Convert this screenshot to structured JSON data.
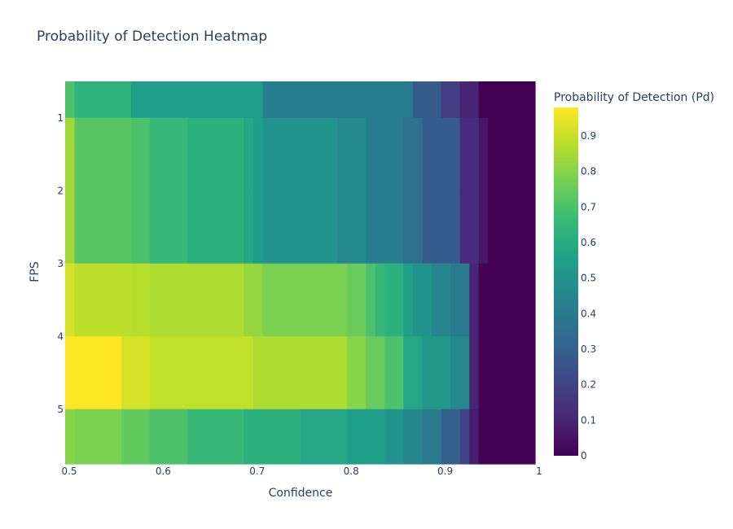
{
  "chart_data": {
    "type": "heatmap",
    "title": "Probability of Detection Heatmap",
    "xlabel": "Confidence",
    "ylabel": "FPS",
    "colorbar_title": "Probability of Detection (Pd)",
    "colorscale": "viridis",
    "zrange": [
      0,
      0.98
    ],
    "xlim": [
      0.5,
      1.0
    ],
    "x_ticks": [
      "0.5",
      "0.6",
      "0.7",
      "0.8",
      "0.9",
      "1"
    ],
    "y_ticks": [
      "1",
      "2",
      "3",
      "4",
      "5"
    ],
    "colorbar_ticks": [
      "0",
      "0.1",
      "0.2",
      "0.3",
      "0.4",
      "0.5",
      "0.6",
      "0.7",
      "0.8",
      "0.9"
    ],
    "colorbar_tick_values": [
      0,
      0.1,
      0.2,
      0.3,
      0.4,
      0.5,
      0.6,
      0.7,
      0.8,
      0.9
    ],
    "rows": [
      {
        "fps": 0.5,
        "segments": [
          {
            "x0": 0.5,
            "x1": 0.51,
            "z": 0.7
          },
          {
            "x0": 0.51,
            "x1": 0.57,
            "z": 0.63
          },
          {
            "x0": 0.57,
            "x1": 0.71,
            "z": 0.55
          },
          {
            "x0": 0.71,
            "x1": 0.86,
            "z": 0.42
          },
          {
            "x0": 0.86,
            "x1": 0.87,
            "z": 0.4
          },
          {
            "x0": 0.87,
            "x1": 0.9,
            "z": 0.28
          },
          {
            "x0": 0.9,
            "x1": 0.92,
            "z": 0.18
          },
          {
            "x0": 0.92,
            "x1": 0.94,
            "z": 0.1
          },
          {
            "x0": 0.94,
            "x1": 1.0,
            "z": 0.0
          }
        ]
      },
      {
        "fps": 1.5,
        "segments": [
          {
            "x0": 0.5,
            "x1": 0.51,
            "z": 0.84
          },
          {
            "x0": 0.51,
            "x1": 0.57,
            "z": 0.72
          },
          {
            "x0": 0.57,
            "x1": 0.59,
            "z": 0.7
          },
          {
            "x0": 0.59,
            "x1": 0.63,
            "z": 0.66
          },
          {
            "x0": 0.63,
            "x1": 0.69,
            "z": 0.62
          },
          {
            "x0": 0.69,
            "x1": 0.7,
            "z": 0.58
          },
          {
            "x0": 0.7,
            "x1": 0.71,
            "z": 0.54
          },
          {
            "x0": 0.71,
            "x1": 0.79,
            "z": 0.5
          },
          {
            "x0": 0.79,
            "x1": 0.82,
            "z": 0.46
          },
          {
            "x0": 0.82,
            "x1": 0.86,
            "z": 0.42
          },
          {
            "x0": 0.86,
            "x1": 0.88,
            "z": 0.36
          },
          {
            "x0": 0.88,
            "x1": 0.92,
            "z": 0.28
          },
          {
            "x0": 0.92,
            "x1": 0.94,
            "z": 0.12
          },
          {
            "x0": 0.94,
            "x1": 0.95,
            "z": 0.06
          },
          {
            "x0": 0.95,
            "x1": 1.0,
            "z": 0.0
          }
        ]
      },
      {
        "fps": 2.5,
        "segments": [
          {
            "x0": 0.5,
            "x1": 0.51,
            "z": 0.84
          },
          {
            "x0": 0.51,
            "x1": 0.57,
            "z": 0.72
          },
          {
            "x0": 0.57,
            "x1": 0.59,
            "z": 0.7
          },
          {
            "x0": 0.59,
            "x1": 0.63,
            "z": 0.66
          },
          {
            "x0": 0.63,
            "x1": 0.69,
            "z": 0.62
          },
          {
            "x0": 0.69,
            "x1": 0.7,
            "z": 0.58
          },
          {
            "x0": 0.7,
            "x1": 0.71,
            "z": 0.54
          },
          {
            "x0": 0.71,
            "x1": 0.79,
            "z": 0.5
          },
          {
            "x0": 0.79,
            "x1": 0.82,
            "z": 0.46
          },
          {
            "x0": 0.82,
            "x1": 0.86,
            "z": 0.42
          },
          {
            "x0": 0.86,
            "x1": 0.88,
            "z": 0.36
          },
          {
            "x0": 0.88,
            "x1": 0.92,
            "z": 0.28
          },
          {
            "x0": 0.92,
            "x1": 0.94,
            "z": 0.12
          },
          {
            "x0": 0.94,
            "x1": 0.95,
            "z": 0.06
          },
          {
            "x0": 0.95,
            "x1": 1.0,
            "z": 0.0
          }
        ]
      },
      {
        "fps": 3.5,
        "segments": [
          {
            "x0": 0.5,
            "x1": 0.51,
            "z": 0.92
          },
          {
            "x0": 0.51,
            "x1": 0.57,
            "z": 0.88
          },
          {
            "x0": 0.57,
            "x1": 0.59,
            "z": 0.87
          },
          {
            "x0": 0.59,
            "x1": 0.69,
            "z": 0.86
          },
          {
            "x0": 0.69,
            "x1": 0.71,
            "z": 0.82
          },
          {
            "x0": 0.71,
            "x1": 0.8,
            "z": 0.78
          },
          {
            "x0": 0.8,
            "x1": 0.82,
            "z": 0.75
          },
          {
            "x0": 0.82,
            "x1": 0.83,
            "z": 0.7
          },
          {
            "x0": 0.83,
            "x1": 0.84,
            "z": 0.66
          },
          {
            "x0": 0.84,
            "x1": 0.86,
            "z": 0.62
          },
          {
            "x0": 0.86,
            "x1": 0.87,
            "z": 0.55
          },
          {
            "x0": 0.87,
            "x1": 0.89,
            "z": 0.5
          },
          {
            "x0": 0.89,
            "x1": 0.91,
            "z": 0.45
          },
          {
            "x0": 0.91,
            "x1": 0.93,
            "z": 0.4
          },
          {
            "x0": 0.93,
            "x1": 0.94,
            "z": 0.1
          },
          {
            "x0": 0.94,
            "x1": 1.0,
            "z": 0.0
          }
        ]
      },
      {
        "fps": 4.5,
        "segments": [
          {
            "x0": 0.5,
            "x1": 0.56,
            "z": 0.98
          },
          {
            "x0": 0.56,
            "x1": 0.59,
            "z": 0.92
          },
          {
            "x0": 0.59,
            "x1": 0.7,
            "z": 0.89
          },
          {
            "x0": 0.7,
            "x1": 0.8,
            "z": 0.86
          },
          {
            "x0": 0.8,
            "x1": 0.82,
            "z": 0.8
          },
          {
            "x0": 0.82,
            "x1": 0.84,
            "z": 0.75
          },
          {
            "x0": 0.84,
            "x1": 0.86,
            "z": 0.7
          },
          {
            "x0": 0.86,
            "x1": 0.88,
            "z": 0.58
          },
          {
            "x0": 0.88,
            "x1": 0.91,
            "z": 0.52
          },
          {
            "x0": 0.91,
            "x1": 0.93,
            "z": 0.46
          },
          {
            "x0": 0.93,
            "x1": 0.94,
            "z": 0.1
          },
          {
            "x0": 0.94,
            "x1": 1.0,
            "z": 0.0
          }
        ]
      },
      {
        "fps": 5.5,
        "segments": [
          {
            "x0": 0.5,
            "x1": 0.51,
            "z": 0.8
          },
          {
            "x0": 0.51,
            "x1": 0.56,
            "z": 0.78
          },
          {
            "x0": 0.56,
            "x1": 0.59,
            "z": 0.74
          },
          {
            "x0": 0.59,
            "x1": 0.63,
            "z": 0.7
          },
          {
            "x0": 0.63,
            "x1": 0.69,
            "z": 0.66
          },
          {
            "x0": 0.69,
            "x1": 0.75,
            "z": 0.62
          },
          {
            "x0": 0.75,
            "x1": 0.8,
            "z": 0.58
          },
          {
            "x0": 0.8,
            "x1": 0.84,
            "z": 0.55
          },
          {
            "x0": 0.84,
            "x1": 0.86,
            "z": 0.5
          },
          {
            "x0": 0.86,
            "x1": 0.88,
            "z": 0.45
          },
          {
            "x0": 0.88,
            "x1": 0.9,
            "z": 0.4
          },
          {
            "x0": 0.9,
            "x1": 0.92,
            "z": 0.3
          },
          {
            "x0": 0.92,
            "x1": 0.93,
            "z": 0.2
          },
          {
            "x0": 0.93,
            "x1": 0.94,
            "z": 0.08
          },
          {
            "x0": 0.94,
            "x1": 1.0,
            "z": 0.0
          }
        ]
      }
    ]
  }
}
